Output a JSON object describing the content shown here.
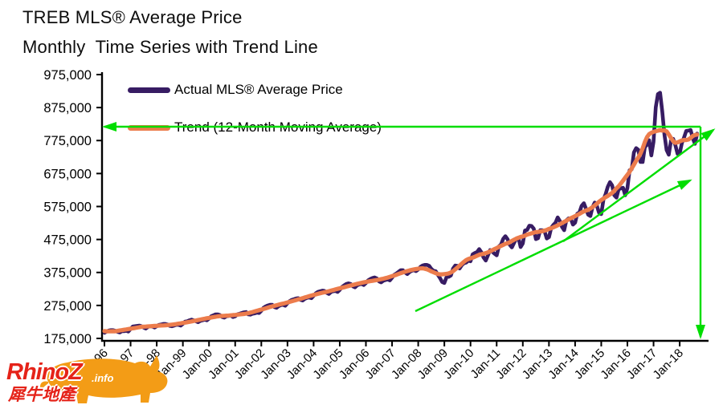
{
  "title": {
    "line1": "TREB MLS® Average Price",
    "line2": "Monthly  Time Series with Trend Line"
  },
  "legend": {
    "items": [
      {
        "label": "Actual MLS® Average Price",
        "color": "#371c63"
      },
      {
        "label": "Trend (12-Month Moving Average)",
        "color": "#ec7c4c"
      }
    ]
  },
  "watermark": {
    "brand": "RhinoZ",
    "suffix": ".info",
    "chinese": "犀牛地產",
    "text_color": "#e52319",
    "rhino_color": "#f39c16",
    "rhino_icon": "rhino-silhouette"
  },
  "colors": {
    "actual_line": "#371c63",
    "trend_line": "#ec7c4c",
    "annotation_green": "#00dd00",
    "axis": "#000000"
  },
  "chart_data": {
    "type": "line",
    "title": "TREB MLS® Average Price",
    "subtitle": "Monthly  Time Series with Trend Line",
    "xlabel": "",
    "ylabel": "",
    "grid": false,
    "legend_position": "top-left inside plot",
    "ylim": [
      175000,
      975000
    ],
    "y_tick_step": 100000,
    "y_tick_labels": [
      "175,000",
      "275,000",
      "375,000",
      "475,000",
      "575,000",
      "675,000",
      "775,000",
      "875,000",
      "975,000"
    ],
    "x_tick_labels": [
      "Jan-96",
      "Jan-97",
      "Jan-98",
      "Jan-99",
      "Jan-00",
      "Jan-01",
      "Jan-02",
      "Jan-03",
      "Jan-04",
      "Jan-05",
      "Jan-06",
      "Jan-07",
      "Jan-08",
      "Jan-09",
      "Jan-10",
      "Jan-11",
      "Jan-12",
      "Jan-13",
      "Jan-14",
      "Jan-15",
      "Jan-16",
      "Jan-17",
      "Jan-18"
    ],
    "x_start": "1996-01",
    "x_end": "2018-09",
    "frequency": "monthly",
    "series": [
      {
        "name": "Actual MLS® Average Price",
        "color": "#371c63",
        "values": [
          192000,
          196000,
          199000,
          200000,
          200000,
          198000,
          195000,
          193000,
          197000,
          197000,
          198000,
          196000,
          204000,
          211000,
          212000,
          213000,
          214000,
          212000,
          208000,
          205000,
          210000,
          212000,
          211000,
          208000,
          212000,
          216000,
          217000,
          219000,
          219000,
          217000,
          213000,
          212000,
          214000,
          216000,
          216000,
          214000,
          219000,
          226000,
          227000,
          230000,
          232000,
          230000,
          227000,
          224000,
          228000,
          230000,
          232000,
          230000,
          235000,
          242000,
          245000,
          248000,
          248000,
          246000,
          240000,
          238000,
          242000,
          243000,
          244000,
          240000,
          242000,
          248000,
          250000,
          252000,
          254000,
          255000,
          248000,
          247000,
          250000,
          251000,
          253000,
          252000,
          259000,
          268000,
          272000,
          275000,
          277000,
          277000,
          270000,
          268000,
          273000,
          276000,
          277000,
          274000,
          282000,
          288000,
          292000,
          294000,
          296000,
          297000,
          292000,
          290000,
          295000,
          298000,
          299000,
          297000,
          304000,
          312000,
          316000,
          318000,
          320000,
          319000,
          313000,
          310000,
          316000,
          318000,
          319000,
          316000,
          322000,
          331000,
          336000,
          340000,
          342000,
          340000,
          333000,
          330000,
          336000,
          339000,
          340000,
          337000,
          343000,
          351000,
          355000,
          358000,
          360000,
          357000,
          348000,
          345000,
          350000,
          352000,
          354000,
          351000,
          359000,
          368000,
          372000,
          377000,
          382000,
          382000,
          375000,
          370000,
          376000,
          380000,
          382000,
          379000,
          384000,
          392000,
          396000,
          398000,
          398000,
          395000,
          386000,
          380000,
          379000,
          368000,
          358000,
          346000,
          343000,
          361000,
          362000,
          366000,
          387000,
          396000,
          395000,
          387000,
          397000,
          403000,
          405000,
          411000,
          409000,
          430000,
          434000,
          437000,
          446000,
          436000,
          420000,
          411000,
          427000,
          443000,
          438000,
          432000,
          427000,
          454000,
          460000,
          477000,
          485000,
          476000,
          459000,
          451000,
          465000,
          478000,
          480000,
          452000,
          463000,
          502000,
          504000,
          517000,
          516000,
          508000,
          476000,
          479000,
          503000,
          503000,
          500000,
          478000,
          482000,
          510000,
          519000,
          526000,
          542000,
          531000,
          513000,
          503000,
          533000,
          539000,
          538000,
          520000,
          526000,
          553000,
          557000,
          577000,
          585000,
          568000,
          550000,
          546000,
          573000,
          587000,
          577000,
          556000,
          552000,
          596000,
          613000,
          635000,
          649000,
          639000,
          609000,
          602000,
          627000,
          630000,
          632000,
          609000,
          631000,
          685000,
          688000,
          739000,
          752000,
          747000,
          710000,
          710000,
          755000,
          762000,
          776000,
          730000,
          771000,
          876000,
          916000,
          920000,
          863000,
          793000,
          746000,
          732000,
          775000,
          780000,
          761000,
          735000,
          736000,
          767000,
          784000,
          804000,
          805000,
          807000,
          782000,
          765000,
          796000
        ]
      },
      {
        "name": "Trend (12-Month Moving Average)",
        "color": "#ec7c4c",
        "derived": "centered 12-month moving average of the actual series (computed at render time)"
      }
    ],
    "annotations": {
      "color": "#00dd00",
      "items": [
        {
          "name": "peak-level-arrow",
          "meaning": "horizontal line at 2017 trend peak, approx $815,000, arrow pointing left to y-axis",
          "x1": 872,
          "y1": 158,
          "x2": 130,
          "y2": 158,
          "approx_value": 815000
        },
        {
          "name": "trend-channel-lower-arrow",
          "meaning": "rising support line from 2008 approx $260,000 toward 2018",
          "x1": 517,
          "y1": 388,
          "x2": 859,
          "y2": 225
        },
        {
          "name": "trend-channel-upper-arrow",
          "meaning": "steeper rising line through 2014-2018 pointing at peak level",
          "x1": 701,
          "y1": 301,
          "x2": 888,
          "y2": 162
        },
        {
          "name": "drop-to-axis-arrow",
          "meaning": "vertical arrow at end of series dropping from peak level line to x-axis",
          "x1": 872,
          "y1": 158,
          "x2": 872,
          "y2": 420
        }
      ]
    }
  }
}
